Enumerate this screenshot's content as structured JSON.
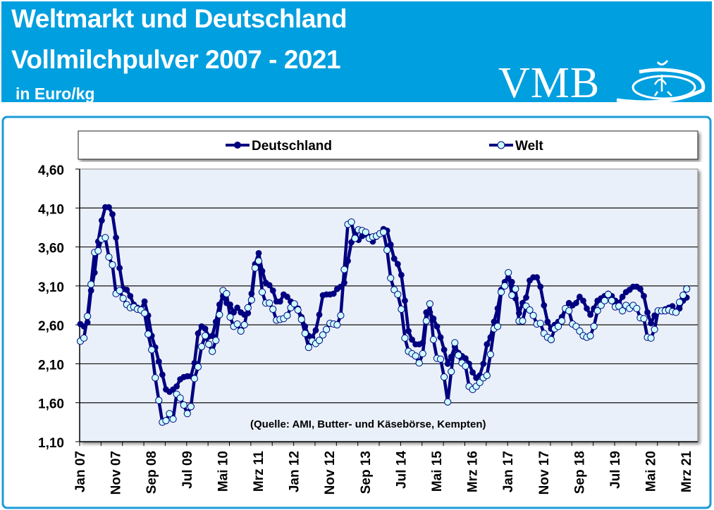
{
  "header": {
    "title_line1": "Weltmarkt und Deutschland",
    "title_line2": "Vollmilchpulver 2007 - 2021",
    "unit": "in Euro/kg",
    "logo_text": "VMB",
    "background_color": "#009fdf"
  },
  "chart_data": {
    "type": "line",
    "ylim": [
      1.1,
      4.6
    ],
    "y_ticks": [
      "4,60",
      "4,10",
      "3,60",
      "3,10",
      "2,60",
      "2,10",
      "1,60",
      "1,10"
    ],
    "y_tick_values": [
      4.6,
      4.1,
      3.6,
      3.1,
      2.6,
      2.1,
      1.6,
      1.1
    ],
    "x_tick_labels": [
      "Jan 07",
      "Nov 07",
      "Sep 08",
      "Jul 09",
      "Mai 10",
      "Mrz 11",
      "Jan 12",
      "Nov 12",
      "Sep 13",
      "Jul 14",
      "Mai 15",
      "Mrz 16",
      "Jan 17",
      "Nov 17",
      "Sep 18",
      "Jul 19",
      "Mai 20",
      "Mrz 21"
    ],
    "grid": "horizontal",
    "legend_position": "top",
    "annotation": "(Quelle: AMI, Butter- und Käsebörse, Kempten)",
    "x_first": "Jan 07",
    "x_last": "Mrz 21",
    "x_interval": "monthly",
    "series": [
      {
        "name": "Deutschland",
        "color": "#000080",
        "marker": "filled-circle",
        "values": [
          2.61,
          2.58,
          2.63,
          3.04,
          3.27,
          3.67,
          3.94,
          4.11,
          4.11,
          4.02,
          3.72,
          3.33,
          3.06,
          3.05,
          2.97,
          2.86,
          2.82,
          2.8,
          2.9,
          2.72,
          2.46,
          2.31,
          2.13,
          1.96,
          1.77,
          1.74,
          1.77,
          1.81,
          1.9,
          1.93,
          1.94,
          1.94,
          2.11,
          2.49,
          2.58,
          2.55,
          2.45,
          2.46,
          2.64,
          2.86,
          2.97,
          2.88,
          2.86,
          2.76,
          2.82,
          2.76,
          2.73,
          2.75,
          3.0,
          3.38,
          3.52,
          3.29,
          3.14,
          3.11,
          3.04,
          2.9,
          2.9,
          2.99,
          2.96,
          2.9,
          2.84,
          2.81,
          2.7,
          2.58,
          2.46,
          2.44,
          2.53,
          2.73,
          2.98,
          2.99,
          2.99,
          3.0,
          3.06,
          3.09,
          3.14,
          3.42,
          3.66,
          3.79,
          3.69,
          3.74,
          3.76,
          3.73,
          3.67,
          3.73,
          3.77,
          3.83,
          3.81,
          3.63,
          3.45,
          3.38,
          3.24,
          2.91,
          2.52,
          2.41,
          2.35,
          2.35,
          2.37,
          2.76,
          2.76,
          2.68,
          2.58,
          2.44,
          2.28,
          2.1,
          2.19,
          2.32,
          2.24,
          2.2,
          2.17,
          2.1,
          1.99,
          1.92,
          1.95,
          2.1,
          2.35,
          2.44,
          2.64,
          2.81,
          3.05,
          3.15,
          3.2,
          3.15,
          2.94,
          2.75,
          2.88,
          2.95,
          3.17,
          3.21,
          3.21,
          3.09,
          2.85,
          2.64,
          2.55,
          2.6,
          2.64,
          2.7,
          2.81,
          2.88,
          2.85,
          2.88,
          2.96,
          2.91,
          2.81,
          2.73,
          2.81,
          2.91,
          2.94,
          2.97,
          3.0,
          2.97,
          2.91,
          2.88,
          2.96,
          3.02,
          3.05,
          3.09,
          3.09,
          3.06,
          2.97,
          2.76,
          2.62,
          2.72,
          2.78,
          2.78,
          2.8,
          2.82,
          2.84,
          2.76,
          2.81,
          2.91,
          2.95
        ]
      },
      {
        "name": "Welt",
        "color": "#000080",
        "marker_fill": "#ccffff",
        "marker": "open-circle",
        "values": [
          2.39,
          2.43,
          2.71,
          3.12,
          3.53,
          3.55,
          3.7,
          3.72,
          3.47,
          3.37,
          3.0,
          3.04,
          2.94,
          2.86,
          2.82,
          2.83,
          2.8,
          2.79,
          2.75,
          2.48,
          2.28,
          1.92,
          1.63,
          1.35,
          1.37,
          1.46,
          1.39,
          1.71,
          1.66,
          1.57,
          1.46,
          1.55,
          1.91,
          2.06,
          2.32,
          2.46,
          2.35,
          2.26,
          2.4,
          2.73,
          3.04,
          3.0,
          2.7,
          2.58,
          2.61,
          2.52,
          2.6,
          2.82,
          2.92,
          3.33,
          3.42,
          3.02,
          2.88,
          2.88,
          2.8,
          2.66,
          2.67,
          2.68,
          2.72,
          2.82,
          2.87,
          2.79,
          2.67,
          2.49,
          2.31,
          2.39,
          2.36,
          2.4,
          2.47,
          2.54,
          2.62,
          2.61,
          2.6,
          2.72,
          3.31,
          3.89,
          3.92,
          3.71,
          3.82,
          3.81,
          3.79,
          3.71,
          3.73,
          3.74,
          3.77,
          3.79,
          3.56,
          3.2,
          3.05,
          2.99,
          2.8,
          2.43,
          2.26,
          2.23,
          2.2,
          2.11,
          2.23,
          2.65,
          2.87,
          2.41,
          2.17,
          2.16,
          1.93,
          1.61,
          2.0,
          2.37,
          2.21,
          2.11,
          2.07,
          1.81,
          1.77,
          1.81,
          1.86,
          1.92,
          1.95,
          2.22,
          2.55,
          2.58,
          3.02,
          3.1,
          3.27,
          2.98,
          3.06,
          2.65,
          2.65,
          2.84,
          2.79,
          2.72,
          2.61,
          2.62,
          2.49,
          2.44,
          2.41,
          2.55,
          2.58,
          2.65,
          2.81,
          2.78,
          2.61,
          2.58,
          2.52,
          2.46,
          2.44,
          2.46,
          2.58,
          2.78,
          2.85,
          2.91,
          2.99,
          2.91,
          2.83,
          2.84,
          2.78,
          2.85,
          2.81,
          2.85,
          2.81,
          2.69,
          2.68,
          2.44,
          2.43,
          2.54,
          2.78,
          2.78,
          2.78,
          2.79,
          2.77,
          2.76,
          2.89,
          2.98,
          3.06
        ]
      }
    ]
  }
}
